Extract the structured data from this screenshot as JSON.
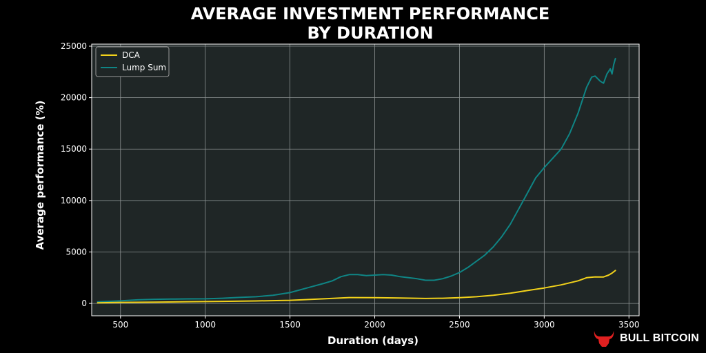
{
  "chart_data": {
    "type": "line",
    "title_line1": "AVERAGE INVESTMENT PERFORMANCE",
    "title_line2": "BY DURATION",
    "xlabel": "Duration (days)",
    "ylabel": "Average performance (%)",
    "xlim": [
      330,
      3560
    ],
    "ylim": [
      -1200,
      25200
    ],
    "xticks": [
      500,
      1000,
      1500,
      2000,
      2500,
      3000,
      3500
    ],
    "yticks": [
      0,
      5000,
      10000,
      15000,
      20000,
      25000
    ],
    "grid": true,
    "legend_position": "top-left",
    "background_color": "#1f2626",
    "series": [
      {
        "name": "DCA",
        "color": "#f2d21b",
        "x": [
          365,
          500,
          700,
          900,
          1100,
          1300,
          1500,
          1700,
          1850,
          2000,
          2150,
          2300,
          2400,
          2500,
          2600,
          2700,
          2800,
          2900,
          3000,
          3100,
          3200,
          3250,
          3300,
          3350,
          3380,
          3400,
          3420
        ],
        "y": [
          50,
          100,
          130,
          170,
          200,
          240,
          300,
          450,
          570,
          560,
          520,
          480,
          500,
          560,
          650,
          800,
          1000,
          1250,
          1500,
          1800,
          2200,
          2500,
          2580,
          2570,
          2750,
          2950,
          3200
        ]
      },
      {
        "name": "Lump Sum",
        "color": "#0f8585",
        "x": [
          365,
          500,
          600,
          700,
          800,
          900,
          1000,
          1100,
          1200,
          1300,
          1400,
          1500,
          1600,
          1700,
          1750,
          1800,
          1850,
          1900,
          1950,
          2000,
          2050,
          2100,
          2150,
          2200,
          2250,
          2300,
          2350,
          2400,
          2450,
          2500,
          2550,
          2600,
          2650,
          2700,
          2750,
          2800,
          2850,
          2900,
          2950,
          3000,
          3050,
          3100,
          3150,
          3200,
          3230,
          3250,
          3280,
          3300,
          3330,
          3350,
          3370,
          3390,
          3400,
          3410,
          3420
        ],
        "y": [
          150,
          250,
          350,
          400,
          420,
          440,
          450,
          500,
          580,
          650,
          800,
          1050,
          1500,
          1950,
          2200,
          2600,
          2800,
          2800,
          2700,
          2750,
          2800,
          2750,
          2600,
          2500,
          2400,
          2250,
          2250,
          2400,
          2650,
          3000,
          3500,
          4100,
          4700,
          5500,
          6500,
          7700,
          9200,
          10700,
          12200,
          13200,
          14100,
          15000,
          16500,
          18500,
          20000,
          21000,
          22000,
          22100,
          21600,
          21400,
          22300,
          22800,
          22300,
          23200,
          23800
        ]
      }
    ]
  },
  "brand": {
    "name": "BULL BITCOIN",
    "icon": "bull-head-icon",
    "icon_color": "#e02020"
  }
}
